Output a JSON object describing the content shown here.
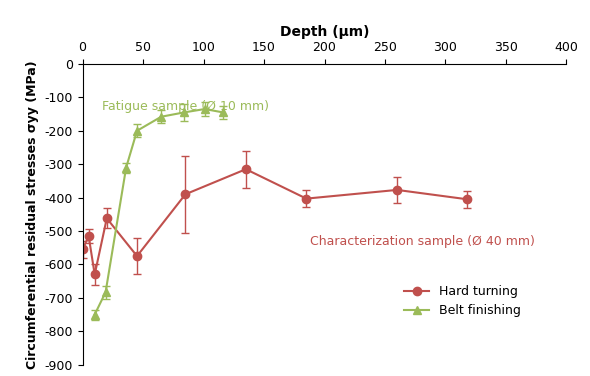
{
  "chart_data": {
    "type": "line",
    "x_label": "Depth (µm)",
    "y_label": "Circumferential residual stresses σyy (MPa)",
    "xlim": [
      0,
      400
    ],
    "xticks": [
      0,
      50,
      100,
      150,
      200,
      250,
      300,
      350,
      400
    ],
    "ylim": [
      -900,
      0
    ],
    "yticks": [
      -900,
      -800,
      -700,
      -600,
      -500,
      -400,
      -300,
      -200,
      -100,
      0
    ],
    "grid": false,
    "legend": "lower right",
    "series": [
      {
        "name": "Hard turning",
        "color": "#c0504d",
        "marker": "circle",
        "line_style": "solid",
        "x": [
          0,
          5,
          10,
          20,
          45,
          85,
          135,
          185,
          260,
          318
        ],
        "values": [
          -555,
          -515,
          -630,
          -462,
          -575,
          -390,
          -315,
          -403,
          -377,
          -405
        ],
        "errors": [
          25,
          20,
          30,
          30,
          55,
          115,
          55,
          25,
          40,
          25
        ]
      },
      {
        "name": "Belt finishing",
        "color": "#9bbb59",
        "marker": "triangle",
        "line_style": "solid",
        "x": [
          10,
          19,
          36,
          45,
          65,
          84,
          101,
          116
        ],
        "values": [
          -750,
          -683,
          -310,
          -200,
          -158,
          -145,
          -135,
          -145
        ],
        "errors": [
          15,
          20,
          15,
          20,
          20,
          25,
          20,
          20
        ]
      }
    ],
    "annotations": [
      {
        "text": "Fatigue sample (Ø 10 mm)",
        "color": "#9bbb59"
      },
      {
        "text": "Characterization sample (Ø 40 mm)",
        "color": "#c0504d"
      }
    ]
  }
}
